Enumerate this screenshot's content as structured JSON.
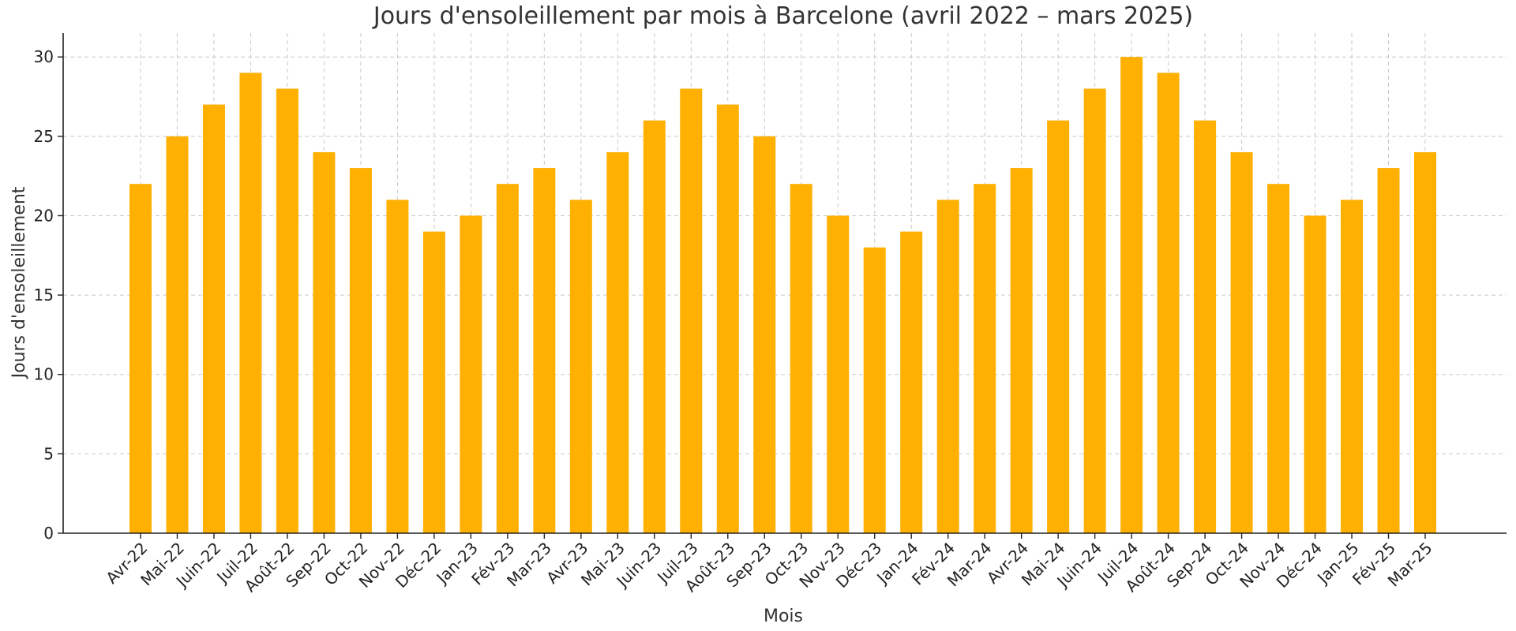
{
  "chart_data": {
    "type": "bar",
    "title": "Jours d'ensoleillement par mois à Barcelone (avril 2022 – mars 2025)",
    "xlabel": "Mois",
    "ylabel": "Jours d'ensoleillement",
    "categories": [
      "Avr-22",
      "Mai-22",
      "Juin-22",
      "Juil-22",
      "Août-22",
      "Sep-22",
      "Oct-22",
      "Nov-22",
      "Déc-22",
      "Jan-23",
      "Fév-23",
      "Mar-23",
      "Avr-23",
      "Mai-23",
      "Juin-23",
      "Juil-23",
      "Août-23",
      "Sep-23",
      "Oct-23",
      "Nov-23",
      "Déc-23",
      "Jan-24",
      "Fév-24",
      "Mar-24",
      "Avr-24",
      "Mai-24",
      "Juin-24",
      "Juil-24",
      "Août-24",
      "Sep-24",
      "Oct-24",
      "Nov-24",
      "Déc-24",
      "Jan-25",
      "Fév-25",
      "Mar-25"
    ],
    "values": [
      22,
      25,
      27,
      29,
      28,
      24,
      23,
      21,
      19,
      20,
      22,
      23,
      21,
      24,
      26,
      28,
      27,
      25,
      22,
      20,
      18,
      19,
      21,
      22,
      23,
      26,
      28,
      30,
      29,
      26,
      24,
      22,
      20,
      21,
      23,
      24
    ],
    "ylim": [
      0,
      31.5
    ],
    "yticks": [
      0,
      5,
      10,
      15,
      20,
      25,
      30
    ],
    "grid": true,
    "bar_color": "#FFB000"
  }
}
